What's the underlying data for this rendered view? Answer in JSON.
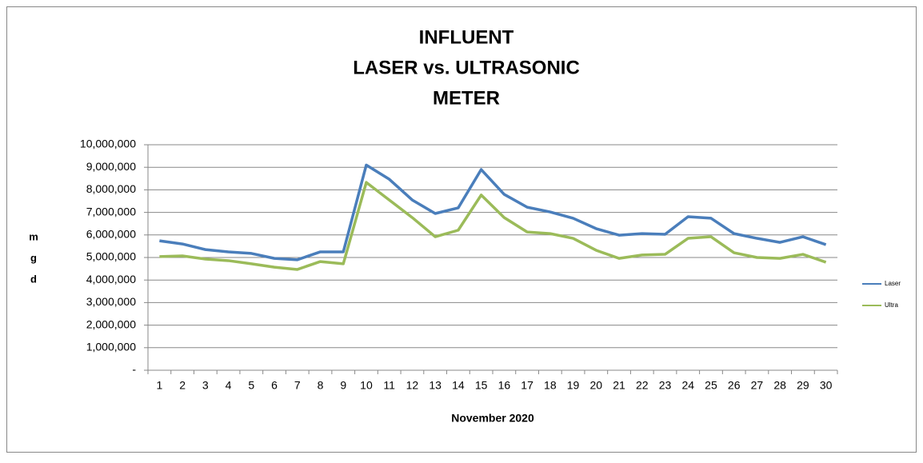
{
  "chart_data": {
    "type": "line",
    "title": [
      "INFLUENT",
      "LASER  vs. ULTRASONIC",
      "METER"
    ],
    "x_label": "November 2020",
    "y_label": [
      "m",
      "g",
      "d"
    ],
    "categories": [
      "1",
      "2",
      "3",
      "4",
      "5",
      "6",
      "7",
      "8",
      "9",
      "10",
      "11",
      "12",
      "13",
      "14",
      "15",
      "16",
      "17",
      "18",
      "19",
      "20",
      "21",
      "22",
      "23",
      "24",
      "25",
      "26",
      "27",
      "28",
      "29",
      "30"
    ],
    "series": [
      {
        "name": "Laser",
        "color": "#4a7ebb",
        "values": [
          5740000,
          5600000,
          5350000,
          5250000,
          5180000,
          4960000,
          4900000,
          5250000,
          5250000,
          9100000,
          8470000,
          7550000,
          6950000,
          7200000,
          8900000,
          7800000,
          7230000,
          7020000,
          6740000,
          6280000,
          5990000,
          6060000,
          6030000,
          6810000,
          6740000,
          6060000,
          5850000,
          5670000,
          5920000,
          5570000
        ]
      },
      {
        "name": "Ultra",
        "color": "#9bbb59",
        "values": [
          5040000,
          5070000,
          4930000,
          4860000,
          4720000,
          4570000,
          4470000,
          4820000,
          4720000,
          8330000,
          7550000,
          6770000,
          5920000,
          6210000,
          7770000,
          6770000,
          6130000,
          6060000,
          5850000,
          5320000,
          4960000,
          5110000,
          5140000,
          5850000,
          5920000,
          5210000,
          5000000,
          4960000,
          5140000,
          4790000
        ]
      }
    ],
    "ylim": [
      0,
      10000000
    ],
    "yticks": [
      {
        "value": 0,
        "label": "-"
      },
      {
        "value": 1000000,
        "label": "1,000,000"
      },
      {
        "value": 2000000,
        "label": "2,000,000"
      },
      {
        "value": 3000000,
        "label": "3,000,000"
      },
      {
        "value": 4000000,
        "label": "4,000,000"
      },
      {
        "value": 5000000,
        "label": "5,000,000"
      },
      {
        "value": 6000000,
        "label": "6,000,000"
      },
      {
        "value": 7000000,
        "label": "7,000,000"
      },
      {
        "value": 8000000,
        "label": "8,000,000"
      },
      {
        "value": 9000000,
        "label": "9,000,000"
      },
      {
        "value": 10000000,
        "label": "10,000,000"
      }
    ],
    "grid": true,
    "legend": "right"
  }
}
